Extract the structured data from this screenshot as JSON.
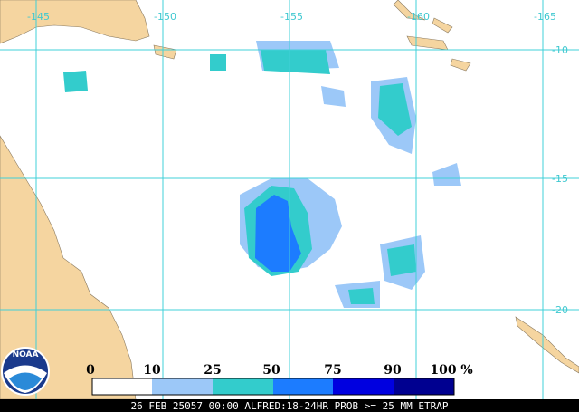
{
  "map": {
    "lon_labels": [
      "-145",
      "-150",
      "-155",
      "-160",
      "-165"
    ],
    "lat_labels": [
      "-10",
      "-15",
      "-20"
    ]
  },
  "legend": {
    "labels": [
      "0",
      "10",
      "25",
      "50",
      "75",
      "90",
      "100"
    ],
    "unit": "%"
  },
  "footer": "26 FEB 25057 00:00 ALFRED:18-24HR PROB >= 25 MM ETRAP",
  "logo": "NOAA"
}
